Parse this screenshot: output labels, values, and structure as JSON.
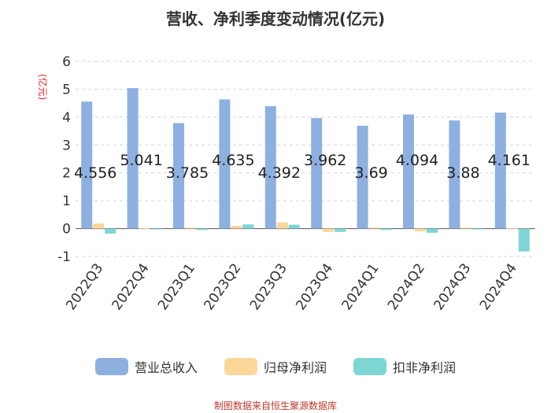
{
  "chart_data": {
    "type": "bar",
    "title": "营收、净利季度变动情况(亿元)",
    "ylabel": "(亿元)",
    "ylim": [
      -1,
      6
    ],
    "yticks": [
      -1,
      0,
      1,
      2,
      3,
      4,
      5,
      6
    ],
    "grid": true,
    "legend_position": "bottom",
    "categories": [
      "2022Q3",
      "2022Q4",
      "2023Q1",
      "2023Q2",
      "2023Q3",
      "2023Q4",
      "2024Q1",
      "2024Q2",
      "2024Q3",
      "2024Q4"
    ],
    "series": [
      {
        "name": "营业总收入",
        "color": "#8eb0e0",
        "values": [
          4.556,
          5.041,
          3.785,
          4.635,
          4.392,
          3.962,
          3.69,
          4.094,
          3.88,
          4.161
        ]
      },
      {
        "name": "归母净利润",
        "color": "#fcd79a",
        "values": [
          0.18,
          0.02,
          0.03,
          0.1,
          0.22,
          -0.12,
          0.04,
          -0.1,
          0.03,
          0.02
        ]
      },
      {
        "name": "扣非净利润",
        "color": "#7ed6d4",
        "values": [
          -0.18,
          -0.02,
          -0.05,
          0.15,
          0.14,
          -0.12,
          -0.05,
          -0.15,
          -0.03,
          -0.82
        ]
      }
    ],
    "data_labels": [
      "4.556",
      "5.041",
      "3.785",
      "4.635",
      "4.392",
      "3.962",
      "3.69",
      "4.094",
      "3.88",
      "4.161"
    ],
    "source": "制图数据来自恒生聚源数据库"
  }
}
